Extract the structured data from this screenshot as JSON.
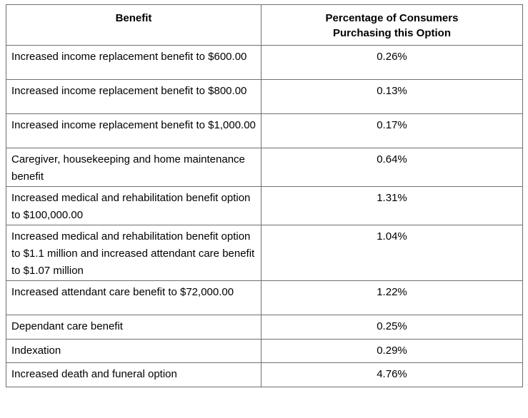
{
  "table": {
    "headers": {
      "benefit": "Benefit",
      "percentage": "Percentage of Consumers\nPurchasing this Option"
    },
    "rows": [
      {
        "benefit": "Increased income replacement benefit to $600.00",
        "percentage": "0.26%"
      },
      {
        "benefit": "Increased income replacement benefit to $800.00",
        "percentage": "0.13%"
      },
      {
        "benefit": "Increased income replacement benefit to $1,000.00",
        "percentage": "0.17%"
      },
      {
        "benefit": "Caregiver, housekeeping and home maintenance benefit",
        "percentage": "0.64%"
      },
      {
        "benefit": "Increased medical and rehabilitation benefit option to $100,000.00",
        "percentage": "1.31%"
      },
      {
        "benefit": "Increased medical and rehabilitation benefit option to $1.1 million and increased attendant care benefit to $1.07 million",
        "percentage": "1.04%"
      },
      {
        "benefit": "Increased attendant care benefit to $72,000.00",
        "percentage": "1.22%"
      },
      {
        "benefit": "Dependant care benefit",
        "percentage": "0.25%"
      },
      {
        "benefit": "Indexation",
        "percentage": "0.29%"
      },
      {
        "benefit": "Increased death and funeral option",
        "percentage": "4.76%"
      }
    ]
  }
}
